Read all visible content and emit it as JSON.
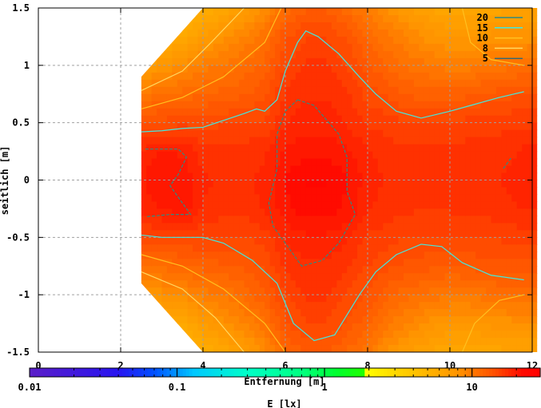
{
  "chart_data": {
    "type": "heatmap",
    "title": "",
    "xlabel": "Entfernung [m]",
    "ylabel": "seitlich [m]",
    "xlim": [
      0,
      12
    ],
    "ylim": [
      -1.5,
      1.5
    ],
    "xticks": [
      "0",
      "2",
      "4",
      "6",
      "8",
      "10",
      "12"
    ],
    "yticks": [
      "-1.5",
      "-1",
      "-0.5",
      "0",
      "0.5",
      "1",
      "1.5"
    ],
    "grid": true,
    "legend": "top-right",
    "x": [
      2.5,
      3,
      3.5,
      4,
      4.5,
      5,
      5.5,
      6,
      6.5,
      7,
      7.5,
      8,
      8.5,
      9,
      9.5,
      10,
      10.5,
      11,
      11.5,
      12
    ],
    "y": [
      1.5,
      1.25,
      1.0,
      0.75,
      0.5,
      0.25,
      0,
      -0.25,
      -0.5,
      -0.75,
      -1.0,
      -1.25,
      -1.5
    ],
    "z": [
      [
        4,
        4.5,
        5,
        5.5,
        6,
        7,
        8.5,
        11,
        12.5,
        12.5,
        11,
        9.5,
        8,
        7,
        6.5,
        6,
        6,
        6,
        6.5,
        6.5
      ],
      [
        5,
        5.5,
        6,
        7,
        8,
        9,
        10.5,
        13.5,
        15,
        15,
        13.5,
        11.5,
        10,
        9,
        8,
        7.5,
        7.5,
        8,
        8,
        8
      ],
      [
        7,
        7.5,
        8.5,
        9.5,
        10,
        11,
        12,
        15,
        16.5,
        16.5,
        15,
        13,
        11.5,
        10.5,
        10,
        9.5,
        9.5,
        10,
        10.5,
        11
      ],
      [
        10,
        10.5,
        11,
        11.5,
        12,
        12.5,
        13.5,
        16.5,
        17.5,
        17.5,
        16.5,
        14.5,
        13.5,
        12.5,
        12,
        12,
        12.5,
        13,
        13.5,
        13.5
      ],
      [
        14,
        14.2,
        14.5,
        14.5,
        14.8,
        15,
        15,
        17.5,
        18.5,
        18.5,
        17.5,
        16,
        15.5,
        15,
        15,
        15,
        15.5,
        15.5,
        16,
        16
      ],
      [
        18,
        19.5,
        19,
        17,
        17,
        17,
        17.5,
        19.5,
        20.5,
        20.5,
        19.5,
        18,
        17,
        16.5,
        16.5,
        16.5,
        17,
        17,
        17.5,
        18.5
      ],
      [
        19,
        21,
        20.5,
        18,
        17.5,
        17.5,
        18,
        21,
        23,
        23,
        21,
        18.5,
        17.5,
        17,
        17,
        17,
        17,
        17.5,
        18,
        18.5
      ],
      [
        18.5,
        19.5,
        20.5,
        17.5,
        17,
        17,
        18,
        20.5,
        22,
        22,
        20.5,
        18,
        17,
        16.5,
        16.5,
        16.5,
        17,
        17,
        17.5,
        18
      ],
      [
        14.5,
        14.8,
        15,
        15,
        15,
        14.8,
        15.5,
        18,
        19,
        19,
        18,
        16,
        15.5,
        15,
        14.8,
        14.8,
        15,
        15,
        15.5,
        15.5
      ],
      [
        10.5,
        11,
        11.5,
        12,
        12.5,
        13,
        14,
        16.5,
        17.5,
        17.5,
        16.5,
        15,
        14,
        13.5,
        13,
        12.5,
        13,
        13.5,
        13.5,
        13.5
      ],
      [
        7.5,
        8,
        8.5,
        9.5,
        10,
        11,
        12.5,
        15,
        16.5,
        16.5,
        15,
        13.5,
        12,
        11,
        10.5,
        10,
        10,
        10.5,
        11,
        11
      ],
      [
        5,
        5.5,
        6,
        7,
        8,
        9,
        10.5,
        13.5,
        15,
        15,
        13.5,
        12,
        10,
        9,
        8,
        7.5,
        7.5,
        8,
        8,
        8
      ],
      [
        4,
        4.5,
        5,
        5.5,
        6,
        7,
        8.5,
        11.5,
        13,
        13,
        11.5,
        10,
        8,
        7,
        6.5,
        6,
        6,
        6,
        6.5,
        6.5
      ]
    ],
    "contours": [
      {
        "label": "20",
        "level": 20,
        "color": "#2f8a80",
        "dashed": true,
        "lines": [
          [
            [
              6.3,
              0.7
            ],
            [
              6.7,
              0.65
            ],
            [
              7.3,
              0.4
            ],
            [
              7.5,
              0.2
            ],
            [
              7.5,
              -0.1
            ],
            [
              7.7,
              -0.3
            ],
            [
              7.3,
              -0.55
            ],
            [
              6.9,
              -0.7
            ],
            [
              6.4,
              -0.75
            ],
            [
              6.1,
              -0.6
            ],
            [
              5.7,
              -0.4
            ],
            [
              5.6,
              -0.2
            ],
            [
              5.8,
              0.1
            ],
            [
              5.8,
              0.4
            ],
            [
              6.0,
              0.6
            ],
            [
              6.3,
              0.7
            ]
          ],
          [
            [
              2.6,
              0.27
            ],
            [
              3.4,
              0.27
            ],
            [
              3.6,
              0.2
            ],
            [
              3.4,
              0.05
            ],
            [
              3.2,
              -0.05
            ],
            [
              3.5,
              -0.2
            ],
            [
              3.7,
              -0.3
            ],
            [
              3.2,
              -0.3
            ],
            [
              2.6,
              -0.32
            ]
          ],
          [
            [
              11.3,
              0.1
            ],
            [
              11.5,
              0.2
            ]
          ]
        ]
      },
      {
        "label": "15",
        "level": 15,
        "color": "#40e8e0",
        "dashed": false,
        "lines": [
          [
            [
              2.5,
              0.42
            ],
            [
              3,
              0.43
            ],
            [
              3.5,
              0.45
            ],
            [
              4,
              0.46
            ],
            [
              4.5,
              0.52
            ],
            [
              5,
              0.58
            ],
            [
              5.3,
              0.62
            ],
            [
              5.5,
              0.6
            ],
            [
              5.8,
              0.7
            ],
            [
              6,
              0.95
            ],
            [
              6.3,
              1.2
            ],
            [
              6.5,
              1.3
            ],
            [
              6.8,
              1.25
            ],
            [
              7.3,
              1.1
            ],
            [
              7.8,
              0.9
            ],
            [
              8.2,
              0.75
            ],
            [
              8.7,
              0.6
            ],
            [
              9.3,
              0.54
            ],
            [
              10,
              0.6
            ],
            [
              10.5,
              0.65
            ],
            [
              11.2,
              0.72
            ],
            [
              11.8,
              0.77
            ]
          ],
          [
            [
              2.5,
              -0.48
            ],
            [
              3,
              -0.5
            ],
            [
              4,
              -0.5
            ],
            [
              4.5,
              -0.55
            ],
            [
              5.2,
              -0.7
            ],
            [
              5.8,
              -0.9
            ],
            [
              6.2,
              -1.25
            ],
            [
              6.7,
              -1.4
            ],
            [
              7.2,
              -1.35
            ],
            [
              7.8,
              -1.0
            ],
            [
              8.2,
              -0.8
            ],
            [
              8.7,
              -0.65
            ],
            [
              9.3,
              -0.56
            ],
            [
              9.8,
              -0.58
            ],
            [
              10.3,
              -0.72
            ],
            [
              11,
              -0.83
            ],
            [
              11.8,
              -0.87
            ]
          ]
        ]
      },
      {
        "label": "10",
        "level": 10,
        "color": "#ffc020",
        "dashed": false,
        "lines": [
          [
            [
              2.5,
              0.62
            ],
            [
              3.5,
              0.72
            ],
            [
              4.5,
              0.9
            ],
            [
              5.5,
              1.2
            ],
            [
              5.9,
              1.5
            ]
          ],
          [
            [
              2.5,
              -0.65
            ],
            [
              3.5,
              -0.75
            ],
            [
              4.5,
              -0.95
            ],
            [
              5.5,
              -1.25
            ],
            [
              6,
              -1.5
            ]
          ],
          [
            [
              10.3,
              1.5
            ],
            [
              10.5,
              1.2
            ],
            [
              11,
              1.05
            ],
            [
              11.8,
              1.0
            ]
          ],
          [
            [
              10.3,
              -1.5
            ],
            [
              10.6,
              -1.25
            ],
            [
              11.2,
              -1.05
            ],
            [
              11.8,
              -1.0
            ]
          ]
        ]
      },
      {
        "label": "8",
        "level": 8,
        "color": "#ffd860",
        "dashed": false,
        "lines": [
          [
            [
              2.5,
              0.78
            ],
            [
              3.5,
              0.95
            ],
            [
              4.2,
              1.2
            ],
            [
              5,
              1.5
            ]
          ],
          [
            [
              2.5,
              -0.8
            ],
            [
              3.5,
              -0.95
            ],
            [
              4.3,
              -1.2
            ],
            [
              5,
              -1.5
            ]
          ]
        ]
      },
      {
        "label": "5",
        "level": 5,
        "color": "#3a6a70",
        "dashed": false,
        "lines": []
      }
    ],
    "colorbar": {
      "label": "E [lx]",
      "scale": "log",
      "range": [
        0.01,
        29
      ],
      "ticks": [
        "0.01",
        "0.1",
        "1",
        "10"
      ],
      "tick_values": [
        0.01,
        0.1,
        1,
        10
      ],
      "stops": [
        [
          0.01,
          "#5a1ec8"
        ],
        [
          0.04,
          "#2814f0"
        ],
        [
          0.07,
          "#0050ff"
        ],
        [
          0.13,
          "#00c8ff"
        ],
        [
          0.3,
          "#00ffc8"
        ],
        [
          0.7,
          "#00ff80"
        ],
        [
          1.2,
          "#00ff30"
        ],
        [
          1.85,
          "#20ff00"
        ],
        [
          1.9,
          "#ffff00"
        ],
        [
          3,
          "#ffd800"
        ],
        [
          5,
          "#ffb400"
        ],
        [
          8,
          "#ff9400"
        ],
        [
          10,
          "#ff7800"
        ],
        [
          13,
          "#ff5a00"
        ],
        [
          15,
          "#ff4600"
        ],
        [
          18,
          "#ff2800"
        ],
        [
          22,
          "#ff0a00"
        ],
        [
          29,
          "#ff0000"
        ]
      ]
    }
  }
}
